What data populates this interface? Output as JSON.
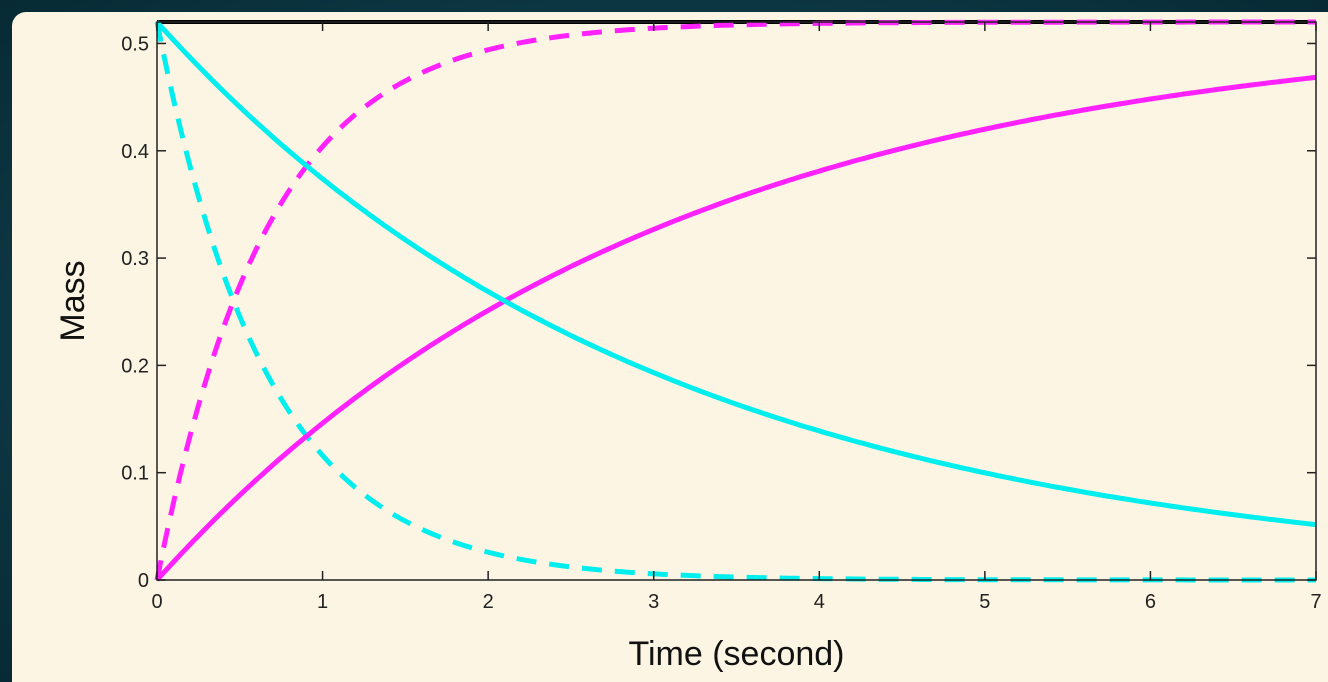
{
  "chart_data": {
    "type": "line",
    "xlabel": "Time (second)",
    "ylabel": "Mass",
    "xlim": [
      0,
      7
    ],
    "ylim": [
      0,
      0.52
    ],
    "xticks": [
      "0",
      "1",
      "2",
      "3",
      "4",
      "5",
      "6",
      "7"
    ],
    "yticks": [
      "0",
      "0.1",
      "0.2",
      "0.3",
      "0.4",
      "0.5"
    ],
    "grid": false,
    "total": 0.52,
    "series": [
      {
        "color": "#000000",
        "style": "solid",
        "kind": "constant",
        "x": [
          0,
          7
        ],
        "y": [
          0.52,
          0.52
        ]
      },
      {
        "color": "#ff22ff",
        "style": "dashed",
        "kind": "rise",
        "rate": 1.5,
        "x": [
          0,
          0.5,
          1,
          1.5,
          2,
          3,
          4,
          5,
          7
        ],
        "y": [
          0,
          0.275,
          0.4,
          0.46,
          0.494,
          0.514,
          0.519,
          0.52,
          0.52
        ]
      },
      {
        "color": "#00eeee",
        "style": "dashed",
        "kind": "decay",
        "rate": 1.5,
        "x": [
          0,
          0.5,
          1,
          1.5,
          2,
          3,
          4,
          5,
          7
        ],
        "y": [
          0.52,
          0.245,
          0.12,
          0.06,
          0.026,
          0.006,
          0.001,
          0,
          0
        ]
      },
      {
        "color": "#ff22ff",
        "style": "solid",
        "kind": "rise",
        "rate": 0.33,
        "x": [
          0,
          1,
          2,
          3,
          4,
          5,
          6,
          7
        ],
        "y": [
          0,
          0.145,
          0.253,
          0.327,
          0.38,
          0.419,
          0.448,
          0.47
        ]
      },
      {
        "color": "#00eeee",
        "style": "solid",
        "kind": "decay",
        "rate": 0.33,
        "x": [
          0,
          1,
          2,
          3,
          4,
          5,
          6,
          7
        ],
        "y": [
          0.52,
          0.375,
          0.267,
          0.193,
          0.14,
          0.101,
          0.072,
          0.05
        ]
      }
    ]
  }
}
